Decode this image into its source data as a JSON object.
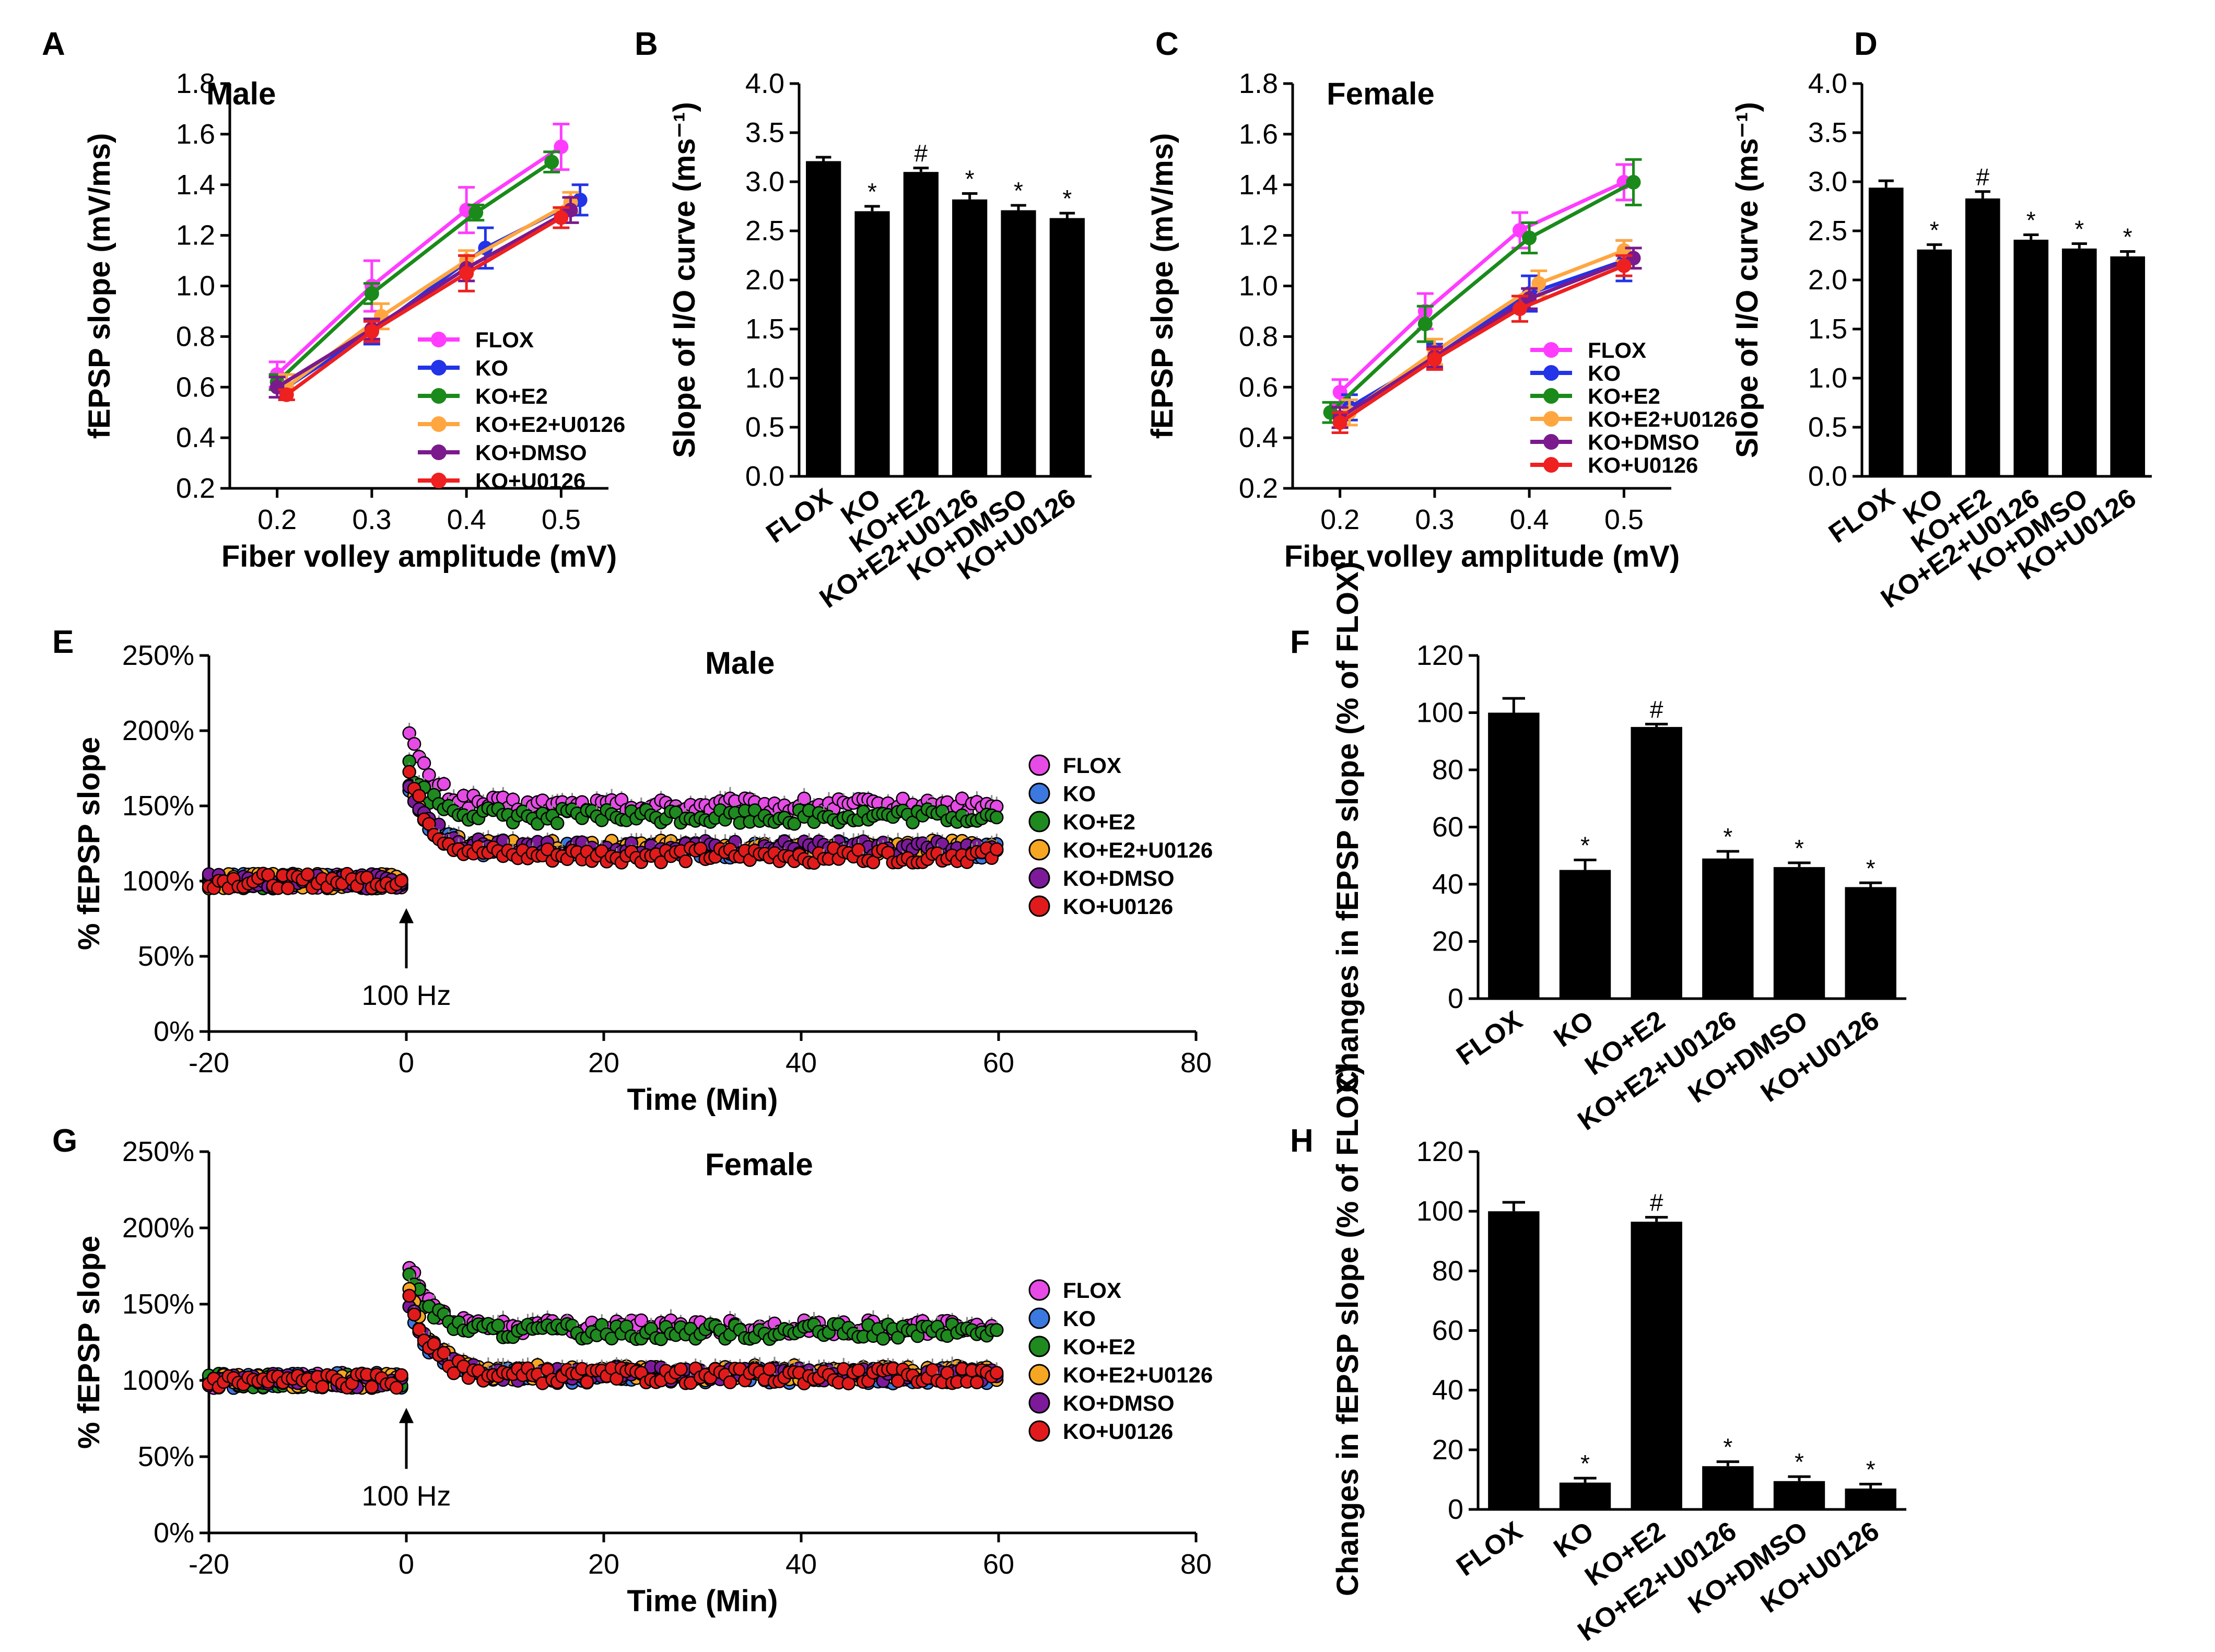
{
  "colors": {
    "FLOX": "#ff3cff",
    "KO": "#2233e8",
    "KO+E2": "#1a8a1a",
    "KO+E2+U0126": "#ffa640",
    "KO+DMSO": "#7a1a8c",
    "KO+U0126": "#ee2020"
  },
  "markers": {
    "FLOX": "#e64be6",
    "KO": "#3b78e0",
    "KO+E2": "#1f8a1f",
    "KO+E2+U0126": "#f5a623",
    "KO+DMSO": "#7d1a9a",
    "KO+U0126": "#e11b1b"
  },
  "chart_data": [
    {
      "panel": "A",
      "type": "line",
      "subtitle": "Male",
      "xlabel": "Fiber volley amplitude (mV)",
      "ylabel": "fEPSP slope (mV/ms)",
      "xlim": [
        0.15,
        0.55
      ],
      "ylim": [
        0.2,
        1.8
      ],
      "xticks": [
        0.2,
        0.3,
        0.4,
        0.5
      ],
      "xtick_labels": [
        "0.2",
        "0.3",
        "0.4",
        "0.5"
      ],
      "yticks": [
        0.2,
        0.4,
        0.6,
        0.8,
        1.0,
        1.2,
        1.4,
        1.6,
        1.8
      ],
      "ytick_labels": [
        "0.2",
        "0.4",
        "0.6",
        "0.8",
        "1.0",
        "1.2",
        "1.4",
        "1.6",
        "1.8"
      ],
      "legend": [
        "FLOX",
        "KO",
        "KO+E2",
        "KO+E2+U0126",
        "KO+DMSO",
        "KO+U0126"
      ],
      "legend_position": "lower-right",
      "series": [
        {
          "name": "FLOX",
          "x": [
            0.2,
            0.3,
            0.4,
            0.5
          ],
          "y": [
            0.65,
            1.0,
            1.3,
            1.55
          ],
          "err": [
            0.05,
            0.1,
            0.09,
            0.09
          ]
        },
        {
          "name": "KO",
          "x": [
            0.21,
            0.3,
            0.42,
            0.52
          ],
          "y": [
            0.6,
            0.82,
            1.15,
            1.34
          ],
          "err": [
            0.05,
            0.05,
            0.08,
            0.06
          ]
        },
        {
          "name": "KO+E2",
          "x": [
            0.2,
            0.3,
            0.41,
            0.49
          ],
          "y": [
            0.62,
            0.97,
            1.29,
            1.49
          ],
          "err": [
            0.03,
            0.04,
            0.03,
            0.04
          ]
        },
        {
          "name": "KO+E2+U0126",
          "x": [
            0.21,
            0.31,
            0.4,
            0.51
          ],
          "y": [
            0.6,
            0.88,
            1.1,
            1.33
          ],
          "err": [
            0.05,
            0.05,
            0.04,
            0.04
          ]
        },
        {
          "name": "KO+DMSO",
          "x": [
            0.2,
            0.3,
            0.4,
            0.51
          ],
          "y": [
            0.6,
            0.83,
            1.07,
            1.3
          ],
          "err": [
            0.04,
            0.04,
            0.05,
            0.05
          ]
        },
        {
          "name": "KO+U0126",
          "x": [
            0.21,
            0.3,
            0.4,
            0.5
          ],
          "y": [
            0.57,
            0.82,
            1.05,
            1.27
          ],
          "err": [
            0.02,
            0.04,
            0.07,
            0.04
          ]
        }
      ]
    },
    {
      "panel": "B",
      "type": "bar",
      "ylabel": "Slope of I/O curve (ms⁻¹)",
      "ylim": [
        0,
        4.0
      ],
      "yticks": [
        0,
        0.5,
        1.0,
        1.5,
        2.0,
        2.5,
        3.0,
        3.5,
        4.0
      ],
      "ytick_labels": [
        "0.0",
        "0.5",
        "1.0",
        "1.5",
        "2.0",
        "2.5",
        "3.0",
        "3.5",
        "4.0"
      ],
      "categories": [
        "FLOX",
        "KO",
        "KO+E2",
        "KO+E2+U0126",
        "KO+DMSO",
        "KO+U0126"
      ],
      "values": [
        3.21,
        2.7,
        3.1,
        2.82,
        2.71,
        2.63
      ],
      "errors": [
        0.04,
        0.05,
        0.04,
        0.06,
        0.05,
        0.05
      ],
      "markers": [
        "",
        "*",
        "#",
        "*",
        "*",
        "*"
      ]
    },
    {
      "panel": "C",
      "type": "line",
      "subtitle": "Female",
      "xlabel": "Fiber volley amplitude (mV)",
      "ylabel": "fEPSP slope (mV/ms)",
      "xlim": [
        0.15,
        0.55
      ],
      "ylim": [
        0.2,
        1.8
      ],
      "xticks": [
        0.2,
        0.3,
        0.4,
        0.5
      ],
      "xtick_labels": [
        "0.2",
        "0.3",
        "0.4",
        "0.5"
      ],
      "yticks": [
        0.2,
        0.4,
        0.6,
        0.8,
        1.0,
        1.2,
        1.4,
        1.6,
        1.8
      ],
      "ytick_labels": [
        "0.2",
        "0.4",
        "0.6",
        "0.8",
        "1.0",
        "1.2",
        "1.4",
        "1.6",
        "1.8"
      ],
      "legend": [
        "FLOX",
        "KO",
        "KO+E2",
        "KO+E2+U0126",
        "KO+DMSO",
        "KO+U0126"
      ],
      "legend_position": "lower-right",
      "series": [
        {
          "name": "FLOX",
          "x": [
            0.2,
            0.29,
            0.39,
            0.5
          ],
          "y": [
            0.58,
            0.9,
            1.22,
            1.41
          ],
          "err": [
            0.05,
            0.07,
            0.07,
            0.07
          ]
        },
        {
          "name": "KO",
          "x": [
            0.21,
            0.3,
            0.4,
            0.5
          ],
          "y": [
            0.52,
            0.72,
            0.97,
            1.1
          ],
          "err": [
            0.05,
            0.05,
            0.07,
            0.08
          ]
        },
        {
          "name": "KO+E2",
          "x": [
            0.19,
            0.29,
            0.4,
            0.51
          ],
          "y": [
            0.5,
            0.85,
            1.19,
            1.41
          ],
          "err": [
            0.04,
            0.07,
            0.06,
            0.09
          ]
        },
        {
          "name": "KO+E2+U0126",
          "x": [
            0.21,
            0.3,
            0.41,
            0.5
          ],
          "y": [
            0.5,
            0.74,
            1.01,
            1.14
          ],
          "err": [
            0.05,
            0.05,
            0.05,
            0.04
          ]
        },
        {
          "name": "KO+DMSO",
          "x": [
            0.2,
            0.3,
            0.4,
            0.51
          ],
          "y": [
            0.48,
            0.72,
            0.95,
            1.11
          ],
          "err": [
            0.04,
            0.04,
            0.04,
            0.04
          ]
        },
        {
          "name": "KO+U0126",
          "x": [
            0.2,
            0.3,
            0.39,
            0.5
          ],
          "y": [
            0.46,
            0.71,
            0.91,
            1.08
          ],
          "err": [
            0.04,
            0.04,
            0.05,
            0.04
          ]
        }
      ]
    },
    {
      "panel": "D",
      "type": "bar",
      "ylabel": "Slope of I/O curve (ms⁻¹)",
      "ylim": [
        0,
        4.0
      ],
      "yticks": [
        0,
        0.5,
        1.0,
        1.5,
        2.0,
        2.5,
        3.0,
        3.5,
        4.0
      ],
      "ytick_labels": [
        "0.0",
        "0.5",
        "1.0",
        "1.5",
        "2.0",
        "2.5",
        "3.0",
        "3.5",
        "4.0"
      ],
      "categories": [
        "FLOX",
        "KO",
        "KO+E2",
        "KO+E2+U0126",
        "KO+DMSO",
        "KO+U0126"
      ],
      "values": [
        2.94,
        2.31,
        2.83,
        2.41,
        2.32,
        2.24
      ],
      "errors": [
        0.07,
        0.05,
        0.07,
        0.05,
        0.05,
        0.05
      ],
      "markers": [
        "",
        "*",
        "#",
        "*",
        "*",
        "*"
      ]
    },
    {
      "panel": "E",
      "type": "scatter",
      "subtitle": "Male",
      "xlabel": "Time (Min)",
      "ylabel": "% fEPSP slope",
      "xlim": [
        -20,
        80
      ],
      "ylim": [
        0,
        250
      ],
      "xticks": [
        -20,
        0,
        20,
        40,
        60,
        80
      ],
      "xtick_labels": [
        "-20",
        "0",
        "20",
        "40",
        "60",
        "80"
      ],
      "yticks": [
        0,
        50,
        100,
        150,
        200,
        250
      ],
      "ytick_labels": [
        "0%",
        "50%",
        "100%",
        "150%",
        "200%",
        "250%"
      ],
      "annotation": "100 Hz",
      "annotation_x": 0,
      "legend": [
        "FLOX",
        "KO",
        "KO+E2",
        "KO+E2+U0126",
        "KO+DMSO",
        "KO+U0126"
      ],
      "legend_position": "right",
      "series": [
        {
          "name": "FLOX",
          "baseline": 100,
          "peak": 205,
          "steady": 150
        },
        {
          "name": "KO",
          "baseline": 100,
          "peak": 170,
          "steady": 120
        },
        {
          "name": "KO+E2",
          "baseline": 100,
          "peak": 180,
          "steady": 143
        },
        {
          "name": "KO+E2+U0126",
          "baseline": 100,
          "peak": 165,
          "steady": 122
        },
        {
          "name": "KO+DMSO",
          "baseline": 100,
          "peak": 170,
          "steady": 122
        },
        {
          "name": "KO+U0126",
          "baseline": 100,
          "peak": 180,
          "steady": 117
        }
      ]
    },
    {
      "panel": "F",
      "type": "bar",
      "ylabel": "Changes in fEPSP slope (% of FLOX)",
      "ylim": [
        0,
        120
      ],
      "yticks": [
        0,
        20,
        40,
        60,
        80,
        100,
        120
      ],
      "ytick_labels": [
        "0",
        "20",
        "40",
        "60",
        "80",
        "100",
        "120"
      ],
      "categories": [
        "FLOX",
        "KO",
        "KO+E2",
        "KO+E2+U0126",
        "KO+DMSO",
        "KO+U0126"
      ],
      "values": [
        100,
        45,
        95,
        49,
        46,
        39
      ],
      "errors": [
        5,
        3.5,
        1,
        2.5,
        1.5,
        1.5
      ],
      "markers": [
        "",
        "*",
        "#",
        "*",
        "*",
        "*"
      ]
    },
    {
      "panel": "G",
      "type": "scatter",
      "subtitle": "Female",
      "xlabel": "Time (Min)",
      "ylabel": "% fEPSP slope",
      "xlim": [
        -20,
        80
      ],
      "ylim": [
        0,
        250
      ],
      "xticks": [
        -20,
        0,
        20,
        40,
        60,
        80
      ],
      "xtick_labels": [
        "-20",
        "0",
        "20",
        "40",
        "60",
        "80"
      ],
      "yticks": [
        0,
        50,
        100,
        150,
        200,
        250
      ],
      "ytick_labels": [
        "0%",
        "50%",
        "100%",
        "150%",
        "200%",
        "250%"
      ],
      "annotation": "100 Hz",
      "annotation_x": 0,
      "legend": [
        "FLOX",
        "KO",
        "KO+E2",
        "KO+E2+U0126",
        "KO+DMSO",
        "KO+U0126"
      ],
      "legend_position": "right",
      "series": [
        {
          "name": "FLOX",
          "baseline": 100,
          "peak": 183,
          "steady": 135
        },
        {
          "name": "KO",
          "baseline": 100,
          "peak": 160,
          "steady": 103
        },
        {
          "name": "KO+E2",
          "baseline": 100,
          "peak": 175,
          "steady": 132
        },
        {
          "name": "KO+E2+U0126",
          "baseline": 100,
          "peak": 165,
          "steady": 105
        },
        {
          "name": "KO+DMSO",
          "baseline": 100,
          "peak": 160,
          "steady": 104
        },
        {
          "name": "KO+U0126",
          "baseline": 100,
          "peak": 162,
          "steady": 103
        }
      ]
    },
    {
      "panel": "H",
      "type": "bar",
      "ylabel": "Changes in fEPSP slope (% of FLOX)",
      "ylim": [
        0,
        120
      ],
      "yticks": [
        0,
        20,
        40,
        60,
        80,
        100,
        120
      ],
      "ytick_labels": [
        "0",
        "20",
        "40",
        "60",
        "80",
        "100",
        "120"
      ],
      "categories": [
        "FLOX",
        "KO",
        "KO+E2",
        "KO+E2+U0126",
        "KO+DMSO",
        "KO+U0126"
      ],
      "values": [
        100,
        9,
        96.5,
        14.5,
        9.5,
        7
      ],
      "errors": [
        3,
        1.5,
        1.5,
        1.5,
        1.5,
        1.5
      ],
      "markers": [
        "",
        "*",
        "#",
        "*",
        "*",
        "*"
      ]
    }
  ]
}
